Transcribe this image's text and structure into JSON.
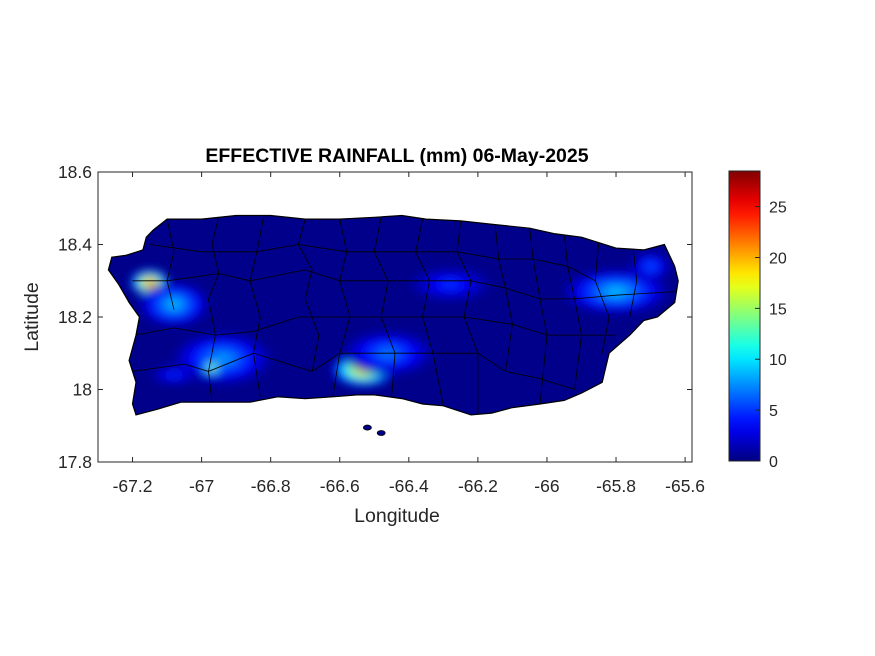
{
  "figure": {
    "title": "EFFECTIVE RAINFALL (mm) 06-May-2025",
    "xlabel": "Longitude",
    "ylabel": "Latitude"
  },
  "axes": {
    "xlim": [
      -67.3,
      -65.58
    ],
    "ylim": [
      17.8,
      18.6
    ],
    "x_ticks": [
      -67.2,
      -67,
      -66.8,
      -66.6,
      -66.4,
      -66.2,
      -66,
      -65.8,
      -65.6
    ],
    "x_tick_labels": [
      "-67.2",
      "-67",
      "-66.8",
      "-66.6",
      "-66.4",
      "-66.2",
      "-66",
      "-65.8",
      "-65.6"
    ],
    "y_ticks": [
      17.8,
      18,
      18.2,
      18.4,
      18.6
    ],
    "y_tick_labels": [
      "17.8",
      "18",
      "18.2",
      "18.4",
      "18.6"
    ]
  },
  "colorbar": {
    "colormap": "jet",
    "clim": [
      0,
      28.5
    ],
    "ticks": [
      0,
      5,
      10,
      15,
      20,
      25
    ],
    "tick_labels": [
      "0",
      "5",
      "10",
      "15",
      "20",
      "25"
    ]
  },
  "map": {
    "region": "Puerto Rico municipalities",
    "background_value_mm": 0.3,
    "border_color": "#000000",
    "rain_cells": [
      {
        "lon": -67.15,
        "lat": 18.295,
        "rx": 0.055,
        "ry": 0.035,
        "peak_mm": 24
      },
      {
        "lon": -67.08,
        "lat": 18.235,
        "rx": 0.1,
        "ry": 0.06,
        "peak_mm": 9
      },
      {
        "lon": -66.94,
        "lat": 18.085,
        "rx": 0.14,
        "ry": 0.07,
        "peak_mm": 8
      },
      {
        "lon": -66.97,
        "lat": 18.06,
        "rx": 0.035,
        "ry": 0.02,
        "peak_mm": 17
      },
      {
        "lon": -67.08,
        "lat": 18.04,
        "rx": 0.07,
        "ry": 0.025,
        "peak_mm": 5
      },
      {
        "lon": -66.53,
        "lat": 18.055,
        "rx": 0.09,
        "ry": 0.045,
        "peak_mm": 22
      },
      {
        "lon": -66.46,
        "lat": 18.1,
        "rx": 0.13,
        "ry": 0.06,
        "peak_mm": 7
      },
      {
        "lon": -66.28,
        "lat": 18.29,
        "rx": 0.12,
        "ry": 0.045,
        "peak_mm": 5
      },
      {
        "lon": -65.8,
        "lat": 18.27,
        "rx": 0.15,
        "ry": 0.06,
        "peak_mm": 9
      },
      {
        "lon": -65.7,
        "lat": 18.34,
        "rx": 0.06,
        "ry": 0.04,
        "peak_mm": 6
      }
    ]
  }
}
